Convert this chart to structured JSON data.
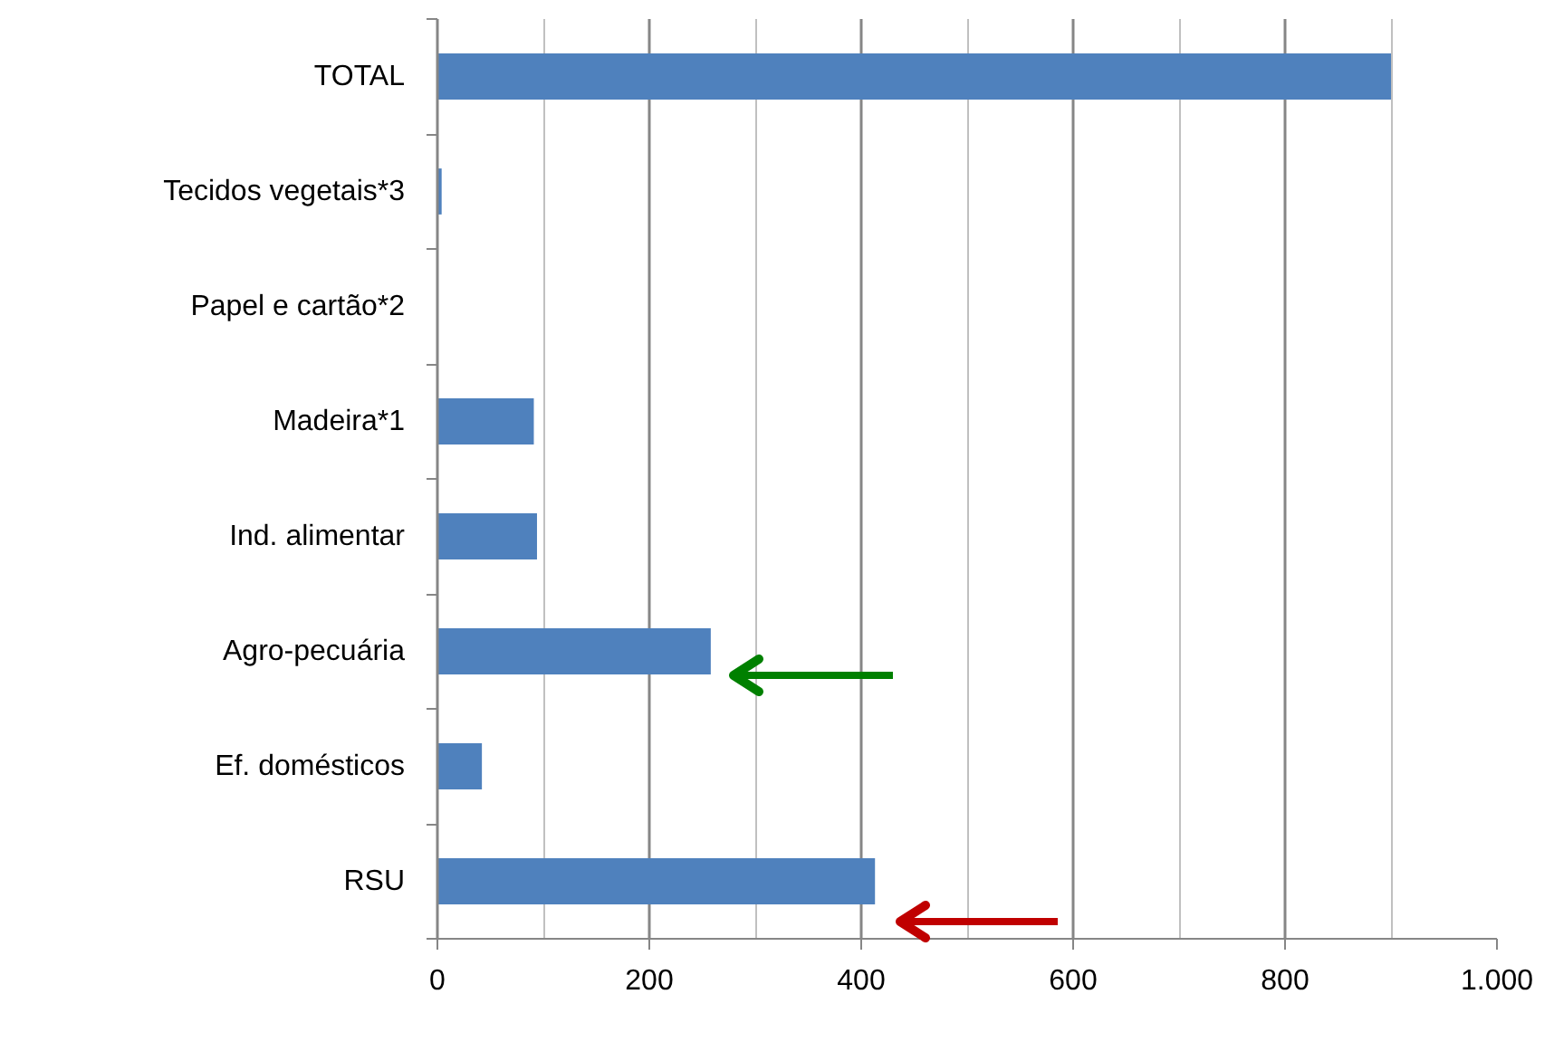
{
  "chart_data": {
    "type": "bar",
    "orientation": "horizontal",
    "categories": [
      "TOTAL",
      "Tecidos vegetais*3",
      "Papel e cartão*2",
      "Madeira*1",
      "Ind. alimentar",
      "Agro-pecuária",
      "Ef. domésticos",
      "RSU"
    ],
    "values": [
      900,
      4,
      0,
      91,
      94,
      258,
      42,
      413
    ],
    "color": "#4f81bd",
    "xlim": [
      0,
      1000
    ],
    "xticks": [
      0,
      {
        "value": 100,
        "label": null
      },
      200,
      {
        "value": 300,
        "label": null
      },
      400,
      {
        "value": 500,
        "label": null
      },
      600,
      {
        "value": 700,
        "label": null
      },
      800,
      {
        "value": 900,
        "label": null
      },
      {
        "value": 1000,
        "label": "1.000"
      }
    ],
    "grid": "x"
  }
}
